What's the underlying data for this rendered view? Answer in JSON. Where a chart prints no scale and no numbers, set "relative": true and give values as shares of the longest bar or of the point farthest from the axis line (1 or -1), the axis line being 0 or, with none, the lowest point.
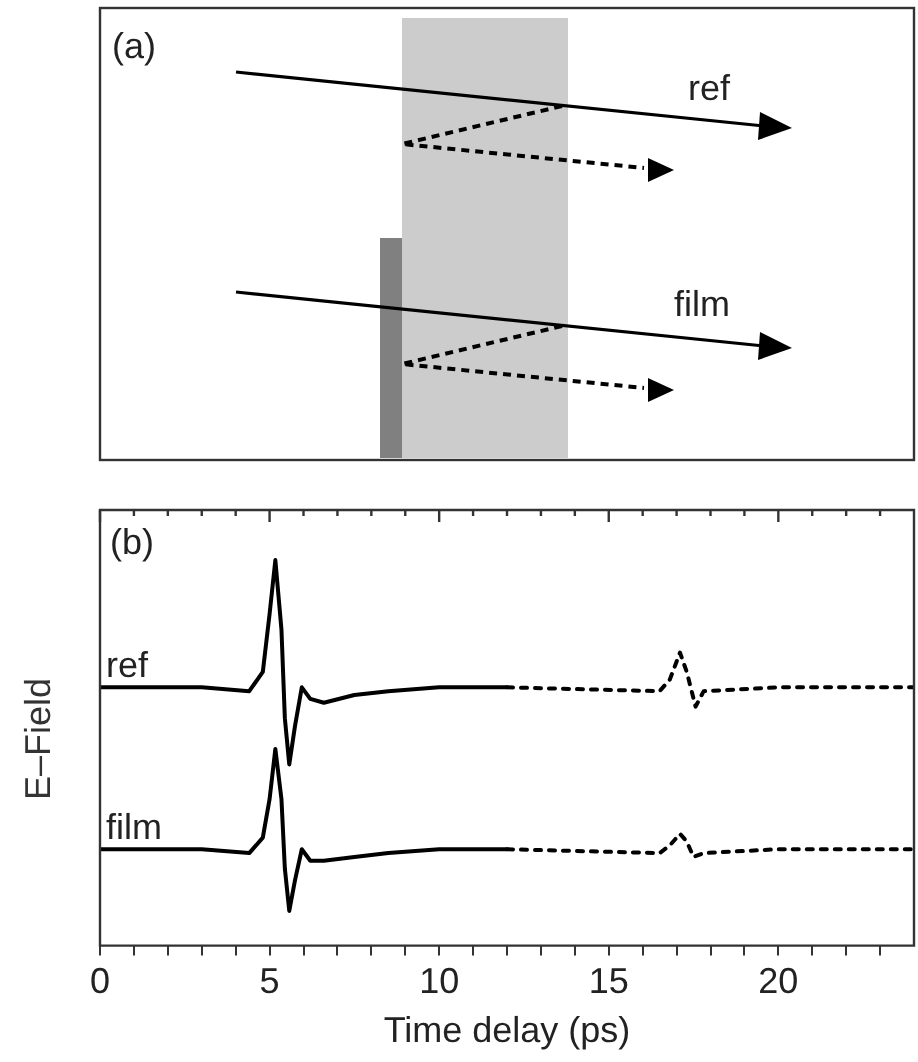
{
  "chart_data": [
    {
      "type": "other",
      "annotations": [
        "(a)",
        "ref",
        "film"
      ]
    },
    {
      "type": "line",
      "relative": true,
      "xlabel": "Time delay (ps)",
      "ylabel": "E–Field",
      "annotations": [
        "(b)"
      ],
      "xlim": [
        0,
        24
      ],
      "xticks": [
        0,
        {
          "value": 1,
          "label": null
        },
        {
          "value": 2,
          "label": null
        },
        {
          "value": 3,
          "label": null
        },
        {
          "value": 4,
          "label": null
        },
        5,
        {
          "value": 6,
          "label": null
        },
        {
          "value": 7,
          "label": null
        },
        {
          "value": 8,
          "label": null
        },
        {
          "value": 9,
          "label": null
        },
        10,
        {
          "value": 11,
          "label": null
        },
        {
          "value": 12,
          "label": null
        },
        {
          "value": 13,
          "label": null
        },
        {
          "value": 14,
          "label": null
        },
        15,
        {
          "value": 16,
          "label": null
        },
        {
          "value": 17,
          "label": null
        },
        {
          "value": 18,
          "label": null
        },
        {
          "value": 19,
          "label": null
        },
        20,
        {
          "value": 21,
          "label": null
        },
        {
          "value": 22,
          "label": null
        },
        {
          "value": 23,
          "label": null
        }
      ],
      "grid": false,
      "legend": false,
      "marker": "none",
      "series": [
        {
          "name": "ref",
          "color": "#000000",
          "line_style": "solid",
          "x": [
            0,
            3,
            4.4,
            4.8,
            5.0,
            5.17,
            5.35,
            5.45,
            5.58,
            5.75,
            5.95,
            6.2,
            6.6,
            7.5,
            8.5,
            10,
            12
          ],
          "values": [
            0.67,
            0.67,
            0.66,
            0.71,
            0.86,
            1.0,
            0.82,
            0.59,
            0.47,
            0.57,
            0.67,
            0.64,
            0.63,
            0.65,
            0.66,
            0.67,
            0.67
          ]
        },
        {
          "color": "#000000",
          "line_style": "dotted",
          "x": [
            12,
            16.5,
            16.8,
            17.1,
            17.3,
            17.56,
            17.8,
            20,
            24
          ],
          "values": [
            0.67,
            0.66,
            0.69,
            0.76,
            0.71,
            0.62,
            0.66,
            0.67,
            0.67
          ]
        },
        {
          "name": "film",
          "color": "#000000",
          "line_style": "solid",
          "x": [
            0,
            3,
            4.4,
            4.8,
            5.0,
            5.17,
            5.35,
            5.45,
            5.58,
            5.75,
            5.95,
            6.2,
            6.6,
            7.5,
            8.5,
            10,
            12
          ],
          "values": [
            0.25,
            0.25,
            0.24,
            0.28,
            0.38,
            0.51,
            0.38,
            0.2,
            0.09,
            0.17,
            0.25,
            0.22,
            0.22,
            0.23,
            0.24,
            0.25,
            0.25
          ]
        },
        {
          "color": "#000000",
          "line_style": "dotted",
          "x": [
            12,
            16.5,
            16.8,
            17.1,
            17.3,
            17.5,
            17.8,
            20,
            24
          ],
          "values": [
            0.25,
            0.24,
            0.26,
            0.29,
            0.27,
            0.23,
            0.24,
            0.25,
            0.25
          ]
        }
      ]
    }
  ]
}
